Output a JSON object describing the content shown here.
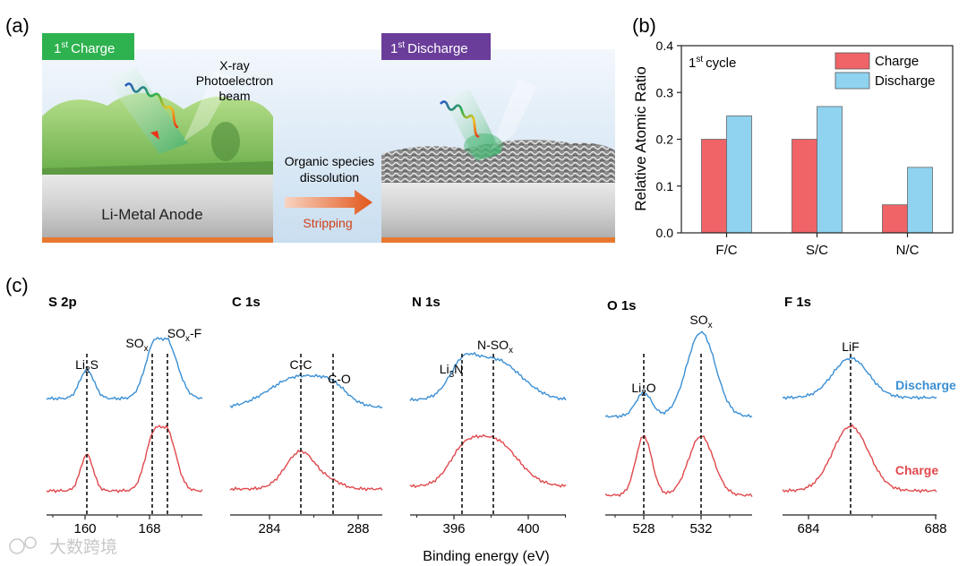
{
  "panel_a": {
    "label": "(a)",
    "charge_badge": {
      "sup": "st",
      "num": "1",
      "text": "Charge",
      "color": "#2eb24f"
    },
    "discharge_badge": {
      "sup": "st",
      "num": "1",
      "text": "Discharge",
      "color": "#6a3d9a"
    },
    "beam_label": [
      "X-ray",
      "Photoelectron",
      "beam"
    ],
    "anode_label": "Li-Metal Anode",
    "process_label": [
      "Organic species",
      "dissolution"
    ],
    "arrow_label": "Stripping"
  },
  "panel_b": {
    "label": "(b)",
    "annotation": {
      "num": "1",
      "sup": "st",
      "text": "cycle"
    }
  },
  "panel_c": {
    "label": "(c)",
    "xlabel": "Binding energy (eV)",
    "legend": {
      "discharge": "Discharge",
      "charge": "Charge"
    },
    "spectra": [
      {
        "title": "S 2p",
        "ticks": [
          "160",
          "168"
        ],
        "peaks": [
          {
            "main": "Li",
            "sub": "2",
            "tail": "S"
          },
          {
            "main": "SO",
            "sub": "x",
            "tail": ""
          },
          {
            "main": "SO",
            "sub": "x",
            "tail": "-F"
          }
        ]
      },
      {
        "title": "C 1s",
        "ticks": [
          "284",
          "288"
        ],
        "peaks": [
          {
            "main": "C-C",
            "sub": "",
            "tail": ""
          },
          {
            "main": "C-O",
            "sub": "",
            "tail": ""
          }
        ]
      },
      {
        "title": "N 1s",
        "ticks": [
          "396",
          "400"
        ],
        "peaks": [
          {
            "main": "Li",
            "sub": "3",
            "tail": "N"
          },
          {
            "main": "N-SO",
            "sub": "x",
            "tail": ""
          }
        ]
      },
      {
        "title": "O 1s",
        "ticks": [
          "528",
          "532"
        ],
        "peaks": [
          {
            "main": "Li",
            "sub": "2",
            "tail": "O"
          },
          {
            "main": "SO",
            "sub": "x",
            "tail": ""
          }
        ]
      },
      {
        "title": "F 1s",
        "ticks": [
          "684",
          "688"
        ],
        "peaks": [
          {
            "main": "LiF",
            "sub": "",
            "tail": ""
          }
        ]
      }
    ]
  },
  "watermark": "大数跨境",
  "colors": {
    "charge": "#f06468",
    "discharge": "#8fd3f0",
    "charge_line": "#e0484c",
    "discharge_line": "#3a8fd4"
  },
  "chart_data": {
    "type": "bar",
    "title": "",
    "categories": [
      "F/C",
      "S/C",
      "N/C"
    ],
    "series": [
      {
        "name": "Charge",
        "values": [
          0.2,
          0.2,
          0.06
        ]
      },
      {
        "name": "Discharge",
        "values": [
          0.25,
          0.27,
          0.14
        ]
      }
    ],
    "xlabel": "",
    "ylabel": "Relative Atomic Ratio",
    "ylim": [
      0,
      0.4
    ],
    "yticks": [
      "0.0",
      "0.1",
      "0.2",
      "0.3",
      "0.4"
    ],
    "legend_position": "top-right"
  }
}
